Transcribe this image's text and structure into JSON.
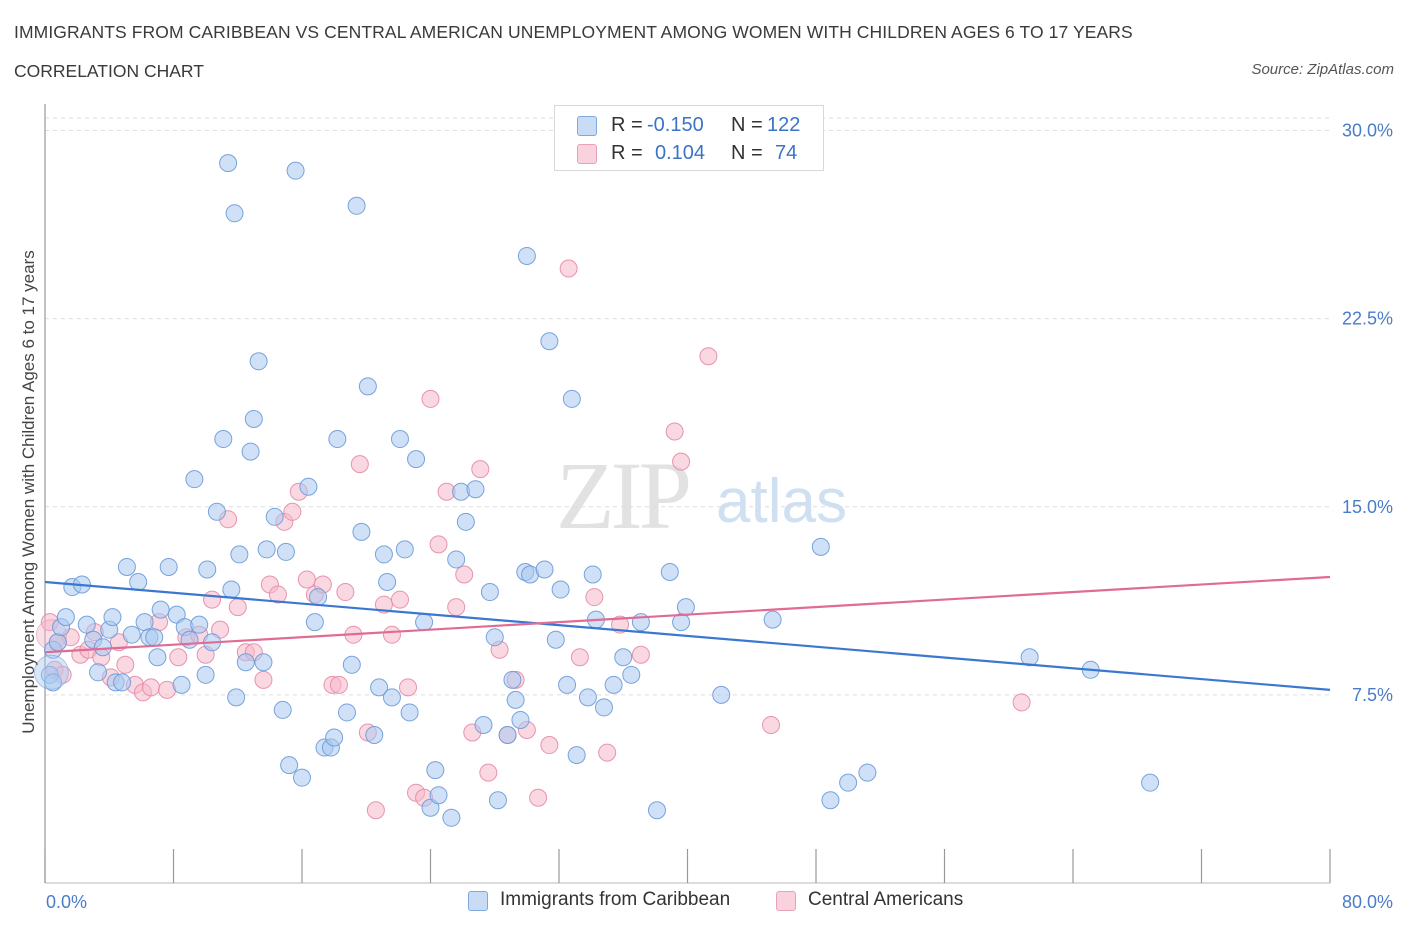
{
  "header": {
    "title": "IMMIGRANTS FROM CARIBBEAN VS CENTRAL AMERICAN UNEMPLOYMENT AMONG WOMEN WITH CHILDREN AGES 6 TO 17 YEARS",
    "subtitle": "CORRELATION CHART",
    "source": "Source: ZipAtlas.com"
  },
  "watermark": {
    "zip": "ZIP",
    "atlas": "atlas"
  },
  "stats": [
    {
      "r_label": "R =",
      "r_value": "-0.150",
      "n_label": "N =",
      "n_value": "122",
      "color": "#a9c8f0"
    },
    {
      "r_label": "R =",
      "r_value": "0.104",
      "n_label": "N =",
      "n_value": "74",
      "color": "#f5b8cb"
    }
  ],
  "legend": [
    {
      "label": "Immigrants from Caribbean",
      "color": "#a9c8f0"
    },
    {
      "label": "Central Americans",
      "color": "#f5b8cb"
    }
  ],
  "colors": {
    "blue_fill": "#a9c8f0",
    "blue_stroke": "#6a9ad8",
    "blue_line": "#3a78d0",
    "pink_fill": "#f5b8cb",
    "pink_stroke": "#e58aa6",
    "pink_line": "#e06b93",
    "tick_text": "#4a7cc9",
    "grid": "#dddddd"
  },
  "chart_data": {
    "type": "scatter",
    "title": "IMMIGRANTS FROM CARIBBEAN VS CENTRAL AMERICAN UNEMPLOYMENT AMONG WOMEN WITH CHILDREN AGES 6 TO 17 YEARS",
    "xlabel": "",
    "ylabel": "Unemployment Among Women with Children Ages 6 to 17 years",
    "xlim": [
      0,
      80
    ],
    "ylim": [
      0,
      30.5
    ],
    "x_tick_labels": [
      "0.0%",
      "80.0%"
    ],
    "y_ticks": [
      7.5,
      15.0,
      22.5,
      30.0
    ],
    "y_tick_labels": [
      "7.5%",
      "15.0%",
      "22.5%",
      "30.0%"
    ],
    "grid": true,
    "legend_position": "bottom",
    "series": [
      {
        "name": "Immigrants from Caribbean",
        "trend": {
          "x": [
            0,
            80
          ],
          "y": [
            12.0,
            7.7
          ]
        },
        "points": [
          [
            0.3,
            8.3
          ],
          [
            0.5,
            9.3
          ],
          [
            0.8,
            9.6
          ],
          [
            1.0,
            10.2
          ],
          [
            1.3,
            10.6
          ],
          [
            1.7,
            11.8
          ],
          [
            2.3,
            11.9
          ],
          [
            2.6,
            10.3
          ],
          [
            3.0,
            9.7
          ],
          [
            3.3,
            8.4
          ],
          [
            3.6,
            9.4
          ],
          [
            4.0,
            10.1
          ],
          [
            4.2,
            10.6
          ],
          [
            4.4,
            8.0
          ],
          [
            4.8,
            8.0
          ],
          [
            5.1,
            12.6
          ],
          [
            5.4,
            9.9
          ],
          [
            5.8,
            12.0
          ],
          [
            6.2,
            10.4
          ],
          [
            6.5,
            9.8
          ],
          [
            6.8,
            9.8
          ],
          [
            7.0,
            9.0
          ],
          [
            7.2,
            10.9
          ],
          [
            7.7,
            12.6
          ],
          [
            8.2,
            10.7
          ],
          [
            8.5,
            7.9
          ],
          [
            8.7,
            10.2
          ],
          [
            9.0,
            9.7
          ],
          [
            9.3,
            16.1
          ],
          [
            9.6,
            10.3
          ],
          [
            10.0,
            8.3
          ],
          [
            10.1,
            12.5
          ],
          [
            10.4,
            9.6
          ],
          [
            10.7,
            14.8
          ],
          [
            11.1,
            17.7
          ],
          [
            11.4,
            28.7
          ],
          [
            11.6,
            11.7
          ],
          [
            11.9,
            7.4
          ],
          [
            12.1,
            13.1
          ],
          [
            12.5,
            8.8
          ],
          [
            12.8,
            17.2
          ],
          [
            13.0,
            18.5
          ],
          [
            13.3,
            20.8
          ],
          [
            13.6,
            8.8
          ],
          [
            13.8,
            13.3
          ],
          [
            14.3,
            14.6
          ],
          [
            14.8,
            6.9
          ],
          [
            15.0,
            13.2
          ],
          [
            15.2,
            4.7
          ],
          [
            15.6,
            28.4
          ],
          [
            16.0,
            4.2
          ],
          [
            16.4,
            15.8
          ],
          [
            16.8,
            10.4
          ],
          [
            17.0,
            11.4
          ],
          [
            17.4,
            5.4
          ],
          [
            17.8,
            5.4
          ],
          [
            18.0,
            5.8
          ],
          [
            18.2,
            17.7
          ],
          [
            18.8,
            6.8
          ],
          [
            19.1,
            8.7
          ],
          [
            19.4,
            27.0
          ],
          [
            19.7,
            14.0
          ],
          [
            20.1,
            19.8
          ],
          [
            20.5,
            5.9
          ],
          [
            20.8,
            7.8
          ],
          [
            21.1,
            13.1
          ],
          [
            21.3,
            12.0
          ],
          [
            21.6,
            7.4
          ],
          [
            22.1,
            17.7
          ],
          [
            22.4,
            13.3
          ],
          [
            22.7,
            6.8
          ],
          [
            23.1,
            16.9
          ],
          [
            23.6,
            10.4
          ],
          [
            24.0,
            3.0
          ],
          [
            24.3,
            4.5
          ],
          [
            24.5,
            3.5
          ],
          [
            25.3,
            2.6
          ],
          [
            25.6,
            12.9
          ],
          [
            25.9,
            15.6
          ],
          [
            26.2,
            14.4
          ],
          [
            26.8,
            15.7
          ],
          [
            27.3,
            6.3
          ],
          [
            27.7,
            11.6
          ],
          [
            28.0,
            9.8
          ],
          [
            28.2,
            3.3
          ],
          [
            28.8,
            5.9
          ],
          [
            29.1,
            8.1
          ],
          [
            29.3,
            7.3
          ],
          [
            29.6,
            6.5
          ],
          [
            29.9,
            12.4
          ],
          [
            30.2,
            12.3
          ],
          [
            30.0,
            25.0
          ],
          [
            31.1,
            12.5
          ],
          [
            31.4,
            21.6
          ],
          [
            31.8,
            9.7
          ],
          [
            32.1,
            11.7
          ],
          [
            32.8,
            19.3
          ],
          [
            32.5,
            7.9
          ],
          [
            33.1,
            5.1
          ],
          [
            33.8,
            7.4
          ],
          [
            34.1,
            12.3
          ],
          [
            34.3,
            10.5
          ],
          [
            34.8,
            7.0
          ],
          [
            35.4,
            7.9
          ],
          [
            36.0,
            9.0
          ],
          [
            36.5,
            8.3
          ],
          [
            37.1,
            10.4
          ],
          [
            38.1,
            2.9
          ],
          [
            38.9,
            12.4
          ],
          [
            39.6,
            10.4
          ],
          [
            39.9,
            11.0
          ],
          [
            42.1,
            7.5
          ],
          [
            45.3,
            10.5
          ],
          [
            48.3,
            13.4
          ],
          [
            48.9,
            3.3
          ],
          [
            50.0,
            4.0
          ],
          [
            51.2,
            4.4
          ],
          [
            61.3,
            9.0
          ],
          [
            65.1,
            8.5
          ],
          [
            68.8,
            4.0
          ],
          [
            0.5,
            8.0
          ],
          [
            11.8,
            26.7
          ]
        ]
      },
      {
        "name": "Central Americans",
        "trend": {
          "x": [
            0,
            80
          ],
          "y": [
            9.2,
            12.2
          ]
        },
        "points": [
          [
            0.3,
            10.4
          ],
          [
            0.6,
            8.5
          ],
          [
            0.8,
            9.6
          ],
          [
            1.1,
            8.3
          ],
          [
            1.6,
            9.8
          ],
          [
            2.2,
            9.1
          ],
          [
            2.7,
            9.3
          ],
          [
            3.1,
            10.0
          ],
          [
            3.5,
            9.0
          ],
          [
            4.1,
            8.2
          ],
          [
            4.6,
            9.6
          ],
          [
            5.0,
            8.7
          ],
          [
            5.6,
            7.9
          ],
          [
            6.1,
            7.6
          ],
          [
            6.6,
            7.8
          ],
          [
            7.1,
            10.4
          ],
          [
            7.6,
            7.7
          ],
          [
            8.3,
            9.0
          ],
          [
            8.8,
            9.8
          ],
          [
            9.6,
            9.9
          ],
          [
            10.0,
            9.1
          ],
          [
            10.4,
            11.3
          ],
          [
            10.9,
            10.1
          ],
          [
            11.4,
            14.5
          ],
          [
            12.0,
            11.0
          ],
          [
            12.5,
            9.2
          ],
          [
            13.0,
            9.2
          ],
          [
            13.6,
            8.1
          ],
          [
            14.0,
            11.9
          ],
          [
            14.5,
            11.5
          ],
          [
            14.9,
            14.4
          ],
          [
            15.4,
            14.8
          ],
          [
            15.8,
            15.6
          ],
          [
            16.3,
            12.1
          ],
          [
            16.8,
            11.5
          ],
          [
            17.3,
            11.9
          ],
          [
            17.9,
            7.9
          ],
          [
            18.3,
            7.9
          ],
          [
            18.7,
            11.6
          ],
          [
            19.2,
            9.9
          ],
          [
            19.6,
            16.7
          ],
          [
            20.1,
            6.0
          ],
          [
            20.6,
            2.9
          ],
          [
            21.1,
            11.1
          ],
          [
            21.6,
            9.9
          ],
          [
            22.1,
            11.3
          ],
          [
            22.6,
            7.8
          ],
          [
            23.1,
            3.6
          ],
          [
            23.6,
            3.4
          ],
          [
            24.0,
            19.3
          ],
          [
            24.5,
            13.5
          ],
          [
            25.0,
            15.6
          ],
          [
            25.6,
            11.0
          ],
          [
            26.1,
            12.3
          ],
          [
            26.6,
            6.0
          ],
          [
            27.1,
            16.5
          ],
          [
            27.6,
            4.4
          ],
          [
            28.3,
            9.3
          ],
          [
            28.8,
            5.9
          ],
          [
            29.3,
            8.1
          ],
          [
            30.0,
            6.1
          ],
          [
            30.7,
            3.4
          ],
          [
            31.4,
            5.5
          ],
          [
            32.6,
            24.5
          ],
          [
            34.2,
            11.4
          ],
          [
            35.0,
            5.2
          ],
          [
            35.8,
            10.3
          ],
          [
            37.1,
            9.1
          ],
          [
            39.2,
            18.0
          ],
          [
            39.6,
            16.8
          ],
          [
            41.3,
            21.0
          ],
          [
            45.2,
            6.3
          ],
          [
            60.8,
            7.2
          ],
          [
            33.3,
            9.0
          ]
        ]
      }
    ]
  }
}
